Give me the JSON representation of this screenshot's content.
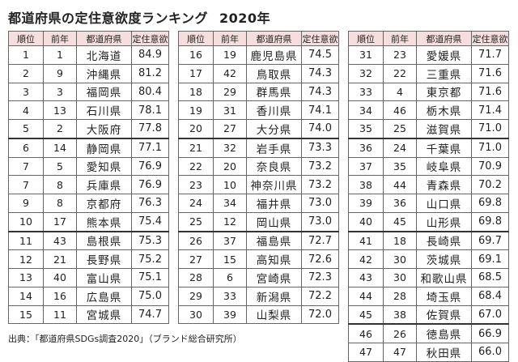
{
  "title": "都道府県の定住意欲度ランキング",
  "year": "2020年",
  "headers": [
    "順位",
    "前年",
    "都道府県",
    "定住意欲"
  ],
  "columns": [
    [
      [
        "1",
        "1",
        "北海道",
        "84.9"
      ],
      [
        "2",
        "9",
        "沖縄県",
        "81.2"
      ],
      [
        "3",
        "3",
        "福岡県",
        "80.4"
      ],
      [
        "4",
        "13",
        "石川県",
        "78.1"
      ],
      [
        "5",
        "2",
        "大阪府",
        "77.8"
      ],
      [
        "6",
        "14",
        "静岡県",
        "77.1"
      ],
      [
        "7",
        "5",
        "愛知県",
        "76.9"
      ],
      [
        "7",
        "8",
        "兵庫県",
        "76.9"
      ],
      [
        "9",
        "8",
        "京都府",
        "76.3"
      ],
      [
        "10",
        "17",
        "熊本県",
        "75.4"
      ],
      [
        "11",
        "43",
        "島根県",
        "75.3"
      ],
      [
        "12",
        "21",
        "長野県",
        "75.2"
      ],
      [
        "13",
        "40",
        "富山県",
        "75.1"
      ],
      [
        "14",
        "16",
        "広島県",
        "75.0"
      ],
      [
        "15",
        "11",
        "宮城県",
        "74.7"
      ]
    ],
    [
      [
        "16",
        "19",
        "鹿児島県",
        "74.5"
      ],
      [
        "17",
        "42",
        "鳥取県",
        "74.3"
      ],
      [
        "18",
        "29",
        "群馬県",
        "74.3"
      ],
      [
        "19",
        "31",
        "香川県",
        "74.1"
      ],
      [
        "20",
        "27",
        "大分県",
        "74.0"
      ],
      [
        "21",
        "32",
        "岩手県",
        "73.3"
      ],
      [
        "22",
        "20",
        "奈良県",
        "73.2"
      ],
      [
        "23",
        "10",
        "神奈川県",
        "73.2"
      ],
      [
        "24",
        "34",
        "福井県",
        "73.0"
      ],
      [
        "25",
        "12",
        "岡山県",
        "73.0"
      ],
      [
        "26",
        "37",
        "福島県",
        "72.7"
      ],
      [
        "27",
        "15",
        "高知県",
        "72.6"
      ],
      [
        "28",
        "6",
        "宮崎県",
        "72.3"
      ],
      [
        "29",
        "33",
        "新潟県",
        "72.2"
      ],
      [
        "30",
        "39",
        "山梨県",
        "72.0"
      ]
    ],
    [
      [
        "31",
        "23",
        "愛媛県",
        "71.7"
      ],
      [
        "32",
        "22",
        "三重県",
        "71.6"
      ],
      [
        "33",
        "4",
        "東京都",
        "71.6"
      ],
      [
        "34",
        "46",
        "栃木県",
        "71.4"
      ],
      [
        "35",
        "25",
        "滋賀県",
        "71.0"
      ],
      [
        "36",
        "24",
        "千葉県",
        "71.0"
      ],
      [
        "37",
        "35",
        "岐阜県",
        "70.9"
      ],
      [
        "38",
        "44",
        "青森県",
        "70.2"
      ],
      [
        "39",
        "36",
        "山口県",
        "69.8"
      ],
      [
        "40",
        "45",
        "山形県",
        "69.8"
      ],
      [
        "41",
        "18",
        "長崎県",
        "69.7"
      ],
      [
        "42",
        "30",
        "茨城県",
        "69.1"
      ],
      [
        "43",
        "30",
        "和歌山県",
        "68.5"
      ],
      [
        "44",
        "28",
        "埼玉県",
        "68.4"
      ],
      [
        "45",
        "38",
        "佐賀県",
        "67.0"
      ],
      [
        "46",
        "26",
        "徳島県",
        "66.9"
      ],
      [
        "47",
        "47",
        "秋田県",
        "66.0"
      ]
    ]
  ],
  "source": "出典：「都道府県SDGs調査2020」（ブランド総合研究所）"
}
